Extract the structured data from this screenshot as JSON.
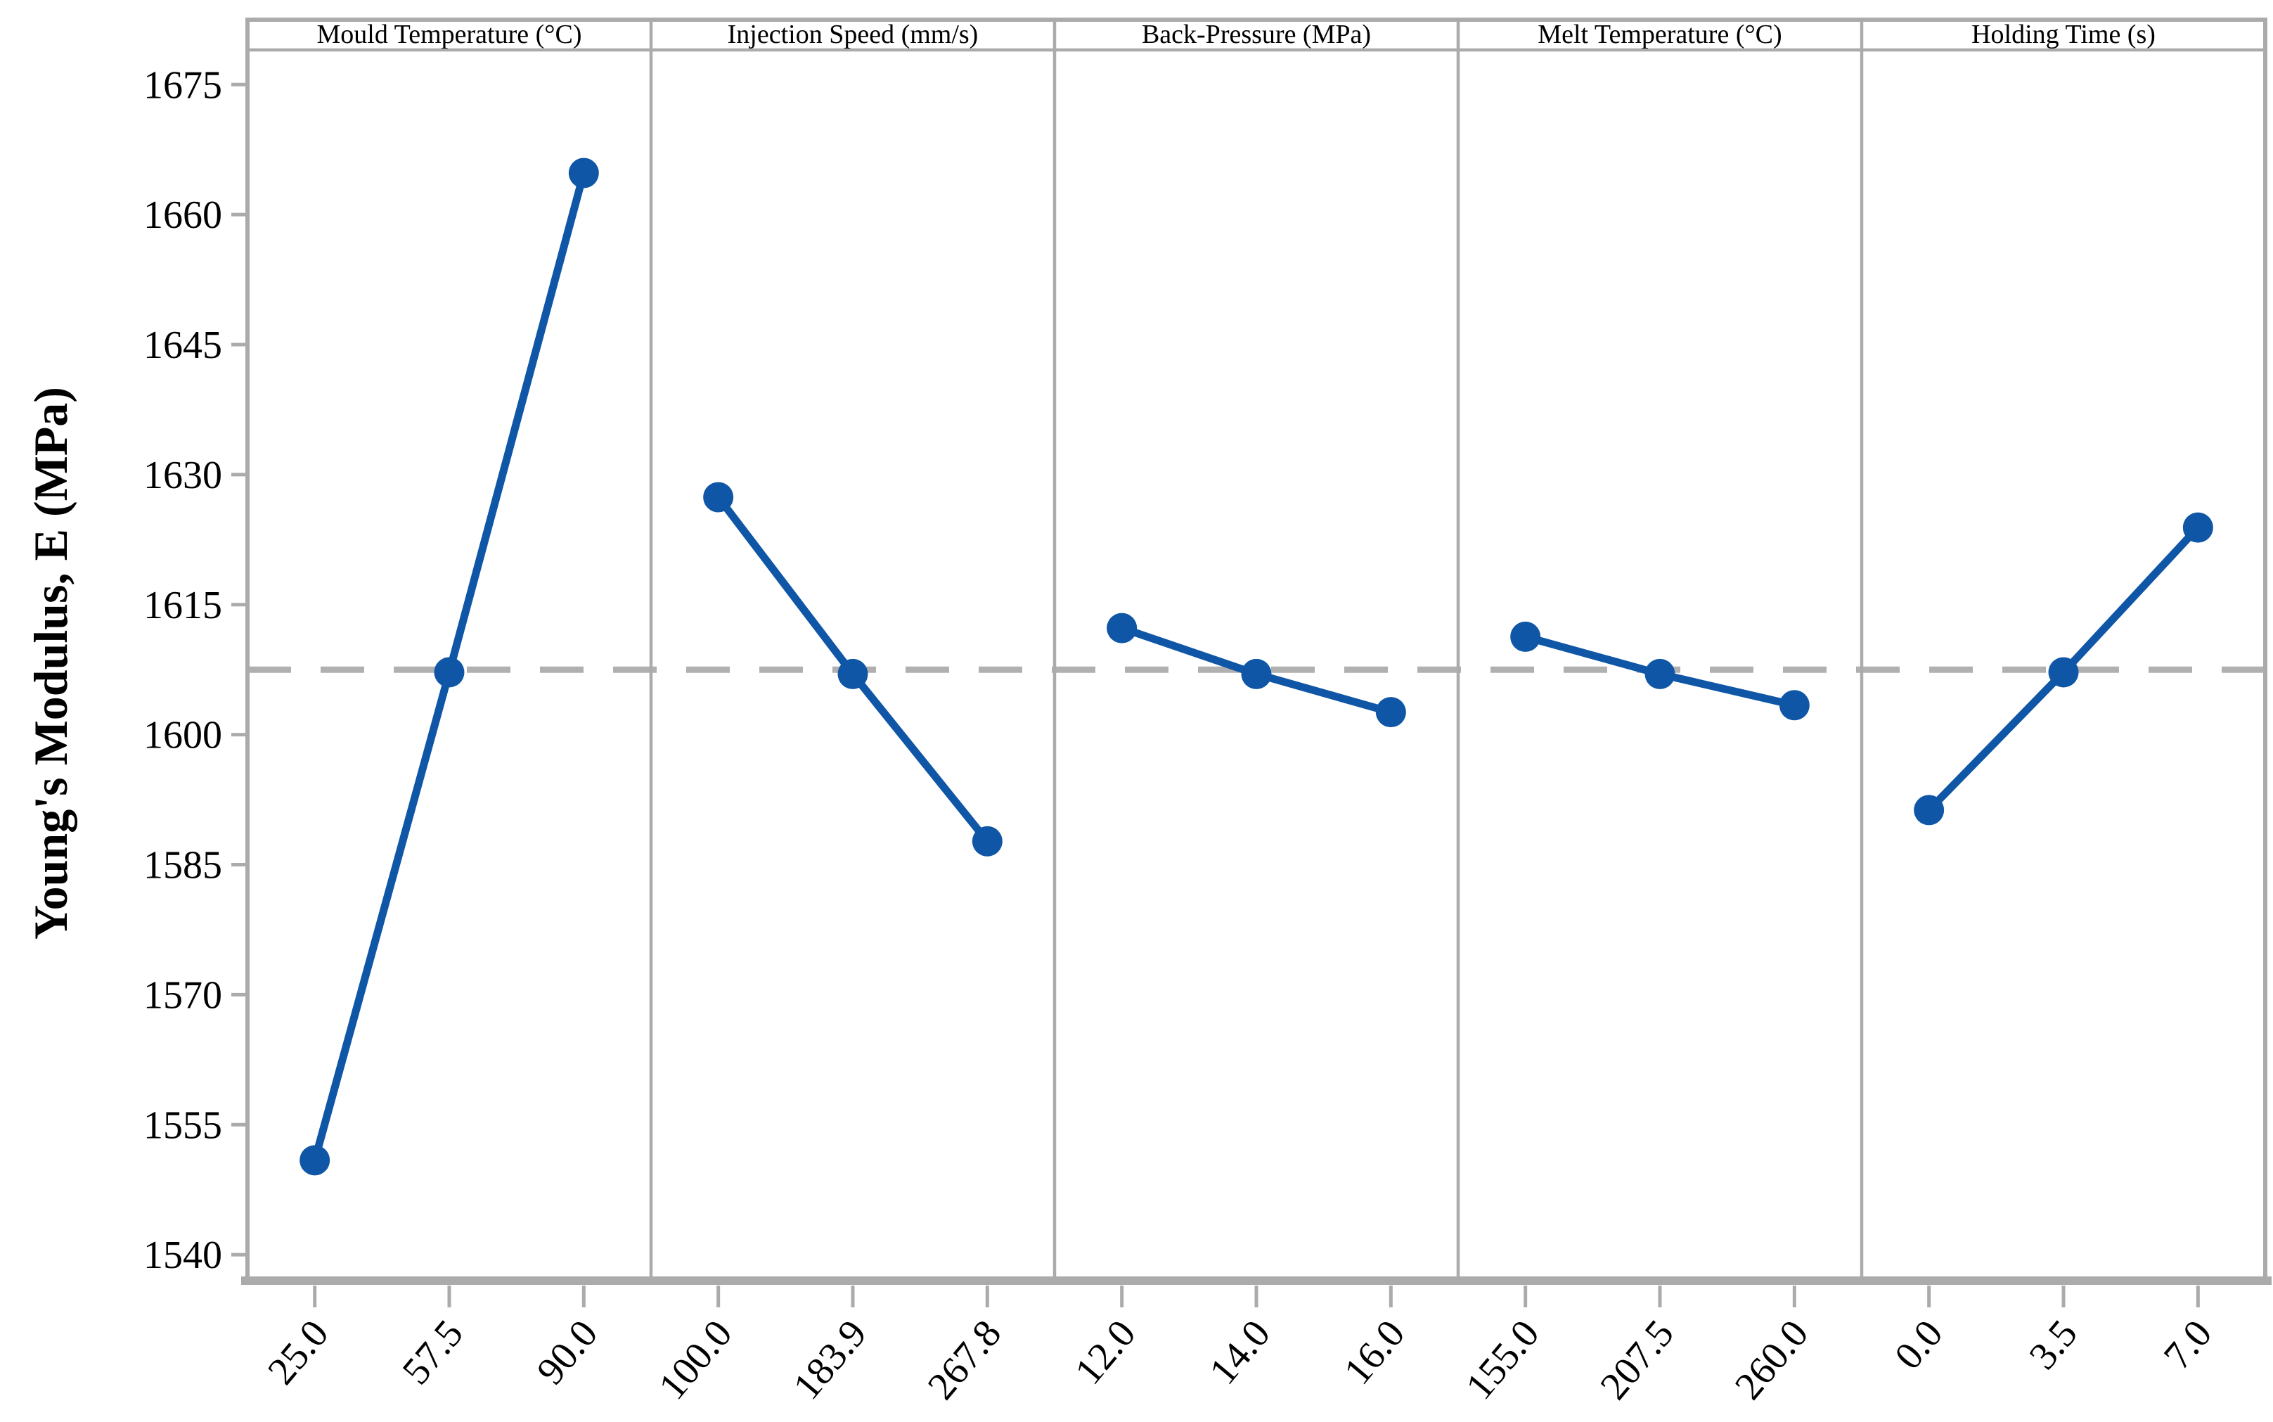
{
  "chart_data": {
    "type": "line",
    "subtype": "main-effects-plot",
    "title": "",
    "ylabel": "Young's Modulus, E (MPa)",
    "ylim": [
      1537.5,
      1679
    ],
    "yticks": [
      1540,
      1555,
      1570,
      1585,
      1600,
      1615,
      1630,
      1645,
      1660,
      1675
    ],
    "grand_mean": 1607.5,
    "grid": false,
    "legend": "none",
    "panels": [
      {
        "factor": "Mould Temperature (°C)",
        "levels": [
          "25.0",
          "57.5",
          "90.0"
        ],
        "means": [
          1550.9,
          1607.2,
          1664.8
        ]
      },
      {
        "factor": "Injection Speed (mm/s)",
        "levels": [
          "100.0",
          "183.9",
          "267.8"
        ],
        "means": [
          1627.4,
          1607.0,
          1587.7
        ]
      },
      {
        "factor": "Back-Pressure (MPa)",
        "levels": [
          "12.0",
          "14.0",
          "16.0"
        ],
        "means": [
          1612.3,
          1607.0,
          1602.6
        ]
      },
      {
        "factor": "Melt Temperature (°C)",
        "levels": [
          "155.0",
          "207.5",
          "260.0"
        ],
        "means": [
          1611.3,
          1607.0,
          1603.4
        ]
      },
      {
        "factor": "Holding Time (s)",
        "levels": [
          "0.0",
          "3.5",
          "7.0"
        ],
        "means": [
          1591.3,
          1607.2,
          1623.9
        ]
      }
    ],
    "colors": {
      "series": "#0F56A6",
      "frame": "#ABABAB",
      "mean_line": "#B0B0B0",
      "text": "#000000",
      "background": "#FFFFFF"
    }
  }
}
